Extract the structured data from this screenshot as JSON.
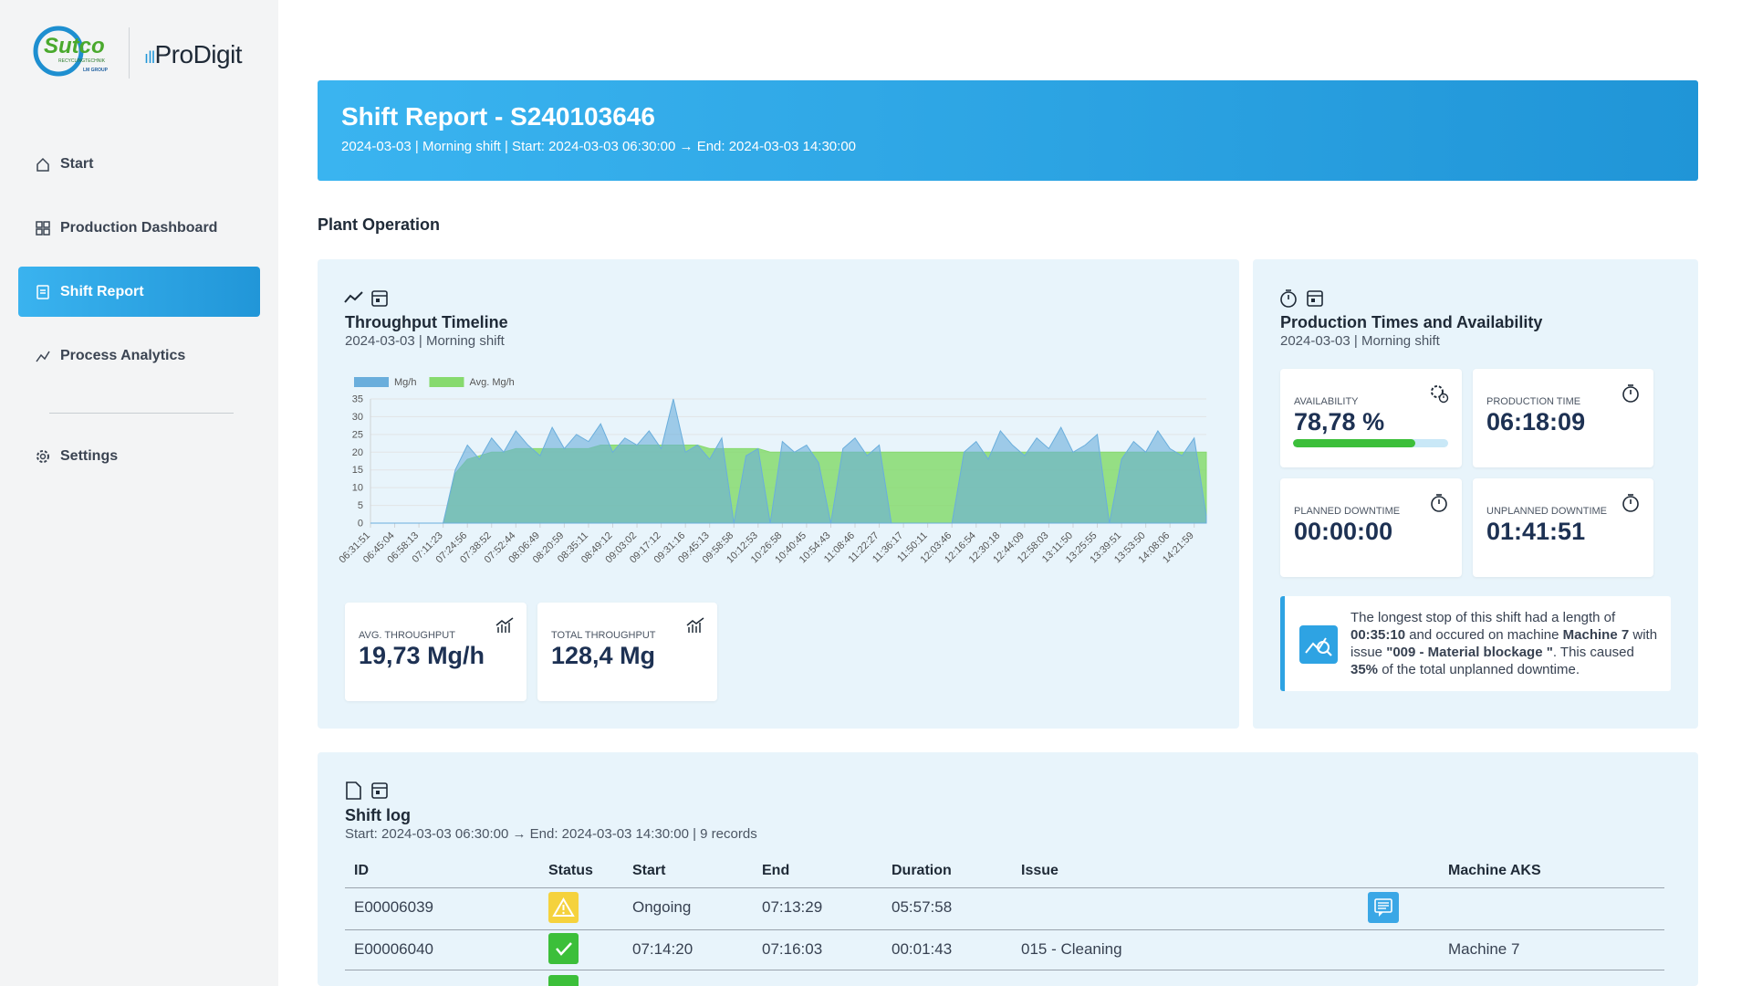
{
  "sidebar": {
    "logo": {
      "brand": "Sutco",
      "tagline": "RECYCLINGTECHNIK",
      "group": "LM GROUP",
      "product": "ProDigit"
    },
    "nav": [
      "Start",
      "Production Dashboard",
      "Shift Report",
      "Process Analytics",
      "Settings"
    ]
  },
  "header": {
    "title": "Shift Report - S240103646",
    "subtitle": "2024-03-03 | Morning shift | Start: 2024-03-03 06:30:00 → End: 2024-03-03 14:30:00"
  },
  "section_title": "Plant Operation",
  "throughput": {
    "title": "Throughput Timeline",
    "subtitle": "2024-03-03 | Morning shift",
    "stats": [
      {
        "label": "AVG. THROUGHPUT",
        "value": "19,73 Mg/h"
      },
      {
        "label": "TOTAL THROUGHPUT",
        "value": "128,4 Mg"
      }
    ]
  },
  "chart_data": {
    "type": "area",
    "legend": "top-left",
    "grid": true,
    "categories": [
      "06:31:51",
      null,
      "06:45:04",
      null,
      "06:58:13",
      null,
      "07:11:23",
      null,
      "07:24:56",
      null,
      "07:38:52",
      null,
      "07:52:44",
      null,
      "08:06:49",
      null,
      "08:20:59",
      null,
      "08:35:11",
      null,
      "08:49:12",
      null,
      "09:03:02",
      null,
      "09:17:12",
      null,
      "09:31:16",
      null,
      "09:45:13",
      null,
      "09:58:58",
      null,
      "10:12:53",
      null,
      "10:26:58",
      null,
      "10:40:45",
      null,
      "10:54:43",
      null,
      "11:08:46",
      null,
      "11:22:27",
      null,
      "11:36:17",
      null,
      "11:50:11",
      null,
      "12:03:46",
      null,
      "12:16:54",
      null,
      "12:30:18",
      null,
      "12:44:09",
      null,
      "12:58:03",
      null,
      "13:11:50",
      null,
      "13:25:55",
      null,
      "13:39:51",
      null,
      "13:53:50",
      null,
      "14:08:06",
      null,
      "14:21:59",
      null
    ],
    "series": [
      {
        "name": "Avg. Mg/h",
        "color": "#86da6e",
        "values": [
          0,
          0,
          0,
          0,
          0,
          0,
          0,
          14,
          18,
          19,
          20,
          20,
          21,
          21,
          21,
          21,
          21,
          21,
          21,
          22,
          22,
          22,
          22,
          22,
          22,
          22,
          22,
          22,
          21,
          21,
          21,
          21,
          21,
          20,
          20,
          20,
          20,
          20,
          20,
          20,
          20,
          20,
          20,
          20,
          20,
          20,
          20,
          20,
          20,
          20,
          20,
          20,
          20,
          20,
          20,
          20,
          20,
          20,
          20,
          20,
          20,
          20,
          20,
          20,
          20,
          20,
          20,
          20,
          20,
          20
        ]
      },
      {
        "name": "Mg/h",
        "color": "#6aaedc",
        "values": [
          0,
          0,
          0,
          0,
          0,
          0,
          0,
          15,
          22,
          18,
          24,
          20,
          26,
          22,
          19,
          27,
          21,
          25,
          23,
          28,
          20,
          24,
          22,
          26,
          21,
          35,
          20,
          22,
          18,
          24,
          0,
          19,
          21,
          0,
          23,
          20,
          22,
          17,
          0,
          21,
          24,
          19,
          22,
          0,
          0,
          0,
          0,
          0,
          0,
          20,
          23,
          18,
          26,
          22,
          19,
          24,
          21,
          27,
          20,
          22,
          25,
          0,
          18,
          23,
          20,
          26,
          21,
          19,
          24,
          2
        ]
      }
    ],
    "ylim": [
      0,
      35
    ],
    "yticks": [
      0,
      5,
      10,
      15,
      20,
      25,
      30,
      35
    ]
  },
  "production": {
    "title": "Production Times and Availability",
    "subtitle": "2024-03-03 | Morning shift",
    "availability": {
      "label": "AVAILABILITY",
      "value": 78.78,
      "value_label": "78,78 %"
    },
    "tiles": [
      {
        "label": "PRODUCTION TIME",
        "value": "06:18:09"
      },
      {
        "label": "PLANNED DOWNTIME",
        "value": "00:00:00"
      },
      {
        "label": "UNPLANNED DOWNTIME",
        "value": "01:41:51"
      }
    ],
    "info": {
      "t1": "The longest stop of this shift had a length of",
      "duration": "00:35:10",
      "t2": "and occured on machine",
      "machine": "Machine 7",
      "t3": "with issue",
      "issue": "\"009 - Material blockage \"",
      "t4": ". This caused",
      "share": "35%",
      "t5": "of the total unplanned downtime."
    }
  },
  "shift_log": {
    "title": "Shift log",
    "subtitle": "Start: 2024-03-03 06:30:00 → End: 2024-03-03 14:30:00 | 9 records",
    "columns": [
      "ID",
      "Status",
      "Start",
      "End",
      "Duration",
      "Issue",
      "Machine AKS"
    ],
    "rows": [
      {
        "id": "E00006039",
        "start": "Ongoing",
        "end": "07:13:29",
        "duration": "05:57:58"
      },
      {
        "id": "E00006040",
        "start": "07:14:20",
        "end": "07:16:03",
        "duration": "00:01:43",
        "issue": "015 - Cleaning",
        "machine": "Machine 7"
      }
    ]
  }
}
